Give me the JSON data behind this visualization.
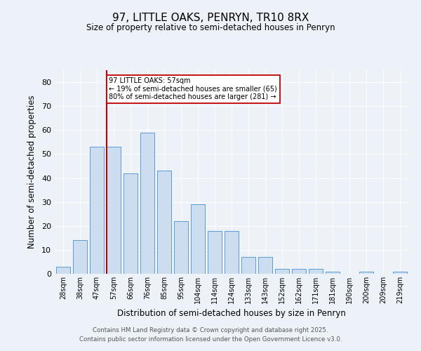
{
  "title": "97, LITTLE OAKS, PENRYN, TR10 8RX",
  "subtitle": "Size of property relative to semi-detached houses in Penryn",
  "xlabel": "Distribution of semi-detached houses by size in Penryn",
  "ylabel": "Number of semi-detached properties",
  "categories": [
    "28sqm",
    "38sqm",
    "47sqm",
    "57sqm",
    "66sqm",
    "76sqm",
    "85sqm",
    "95sqm",
    "104sqm",
    "114sqm",
    "124sqm",
    "133sqm",
    "143sqm",
    "152sqm",
    "162sqm",
    "171sqm",
    "181sqm",
    "190sqm",
    "200sqm",
    "209sqm",
    "219sqm"
  ],
  "values": [
    3,
    14,
    53,
    53,
    42,
    59,
    43,
    22,
    29,
    18,
    18,
    7,
    7,
    2,
    2,
    2,
    1,
    0,
    1,
    0,
    1
  ],
  "bar_color": "#ccddf0",
  "bar_edge_color": "#5b9bd5",
  "annotation_box_color": "#c00000",
  "pct_smaller": 19,
  "count_smaller": 65,
  "pct_larger": 80,
  "count_larger": 281,
  "property_size": "57sqm",
  "property_name": "97 LITTLE OAKS",
  "ylim": [
    0,
    85
  ],
  "yticks": [
    0,
    10,
    20,
    30,
    40,
    50,
    60,
    70,
    80
  ],
  "footer1": "Contains HM Land Registry data © Crown copyright and database right 2025.",
  "footer2": "Contains public sector information licensed under the Open Government Licence v3.0.",
  "background_color": "#edf2f9",
  "grid_color": "#ffffff",
  "highlight_bar_idx": 3
}
